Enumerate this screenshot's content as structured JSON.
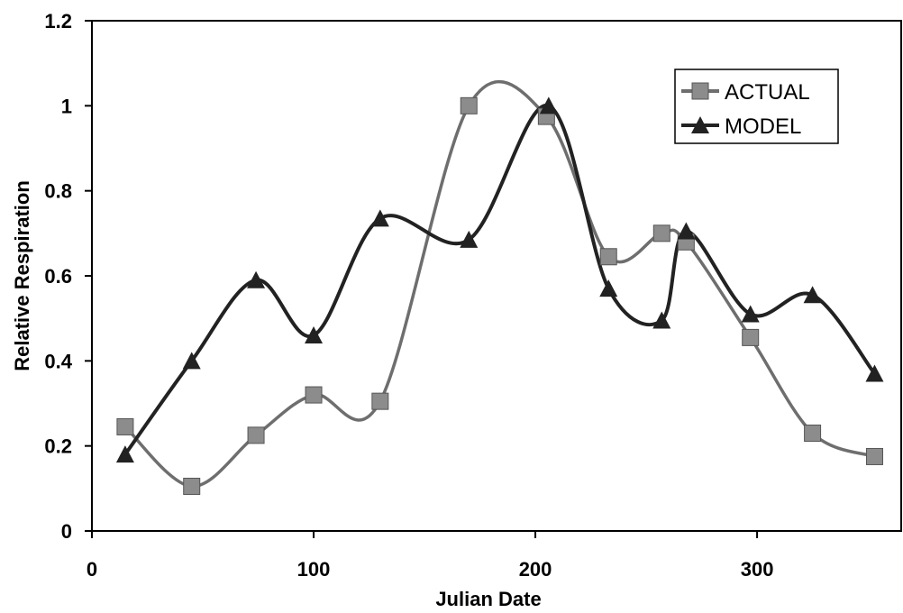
{
  "chart_data": {
    "type": "line",
    "xlabel": "Julian Date",
    "ylabel": "Relative Respiration",
    "xlim": [
      0,
      365
    ],
    "ylim": [
      0,
      1.2
    ],
    "xticks": [
      0,
      100,
      200,
      300
    ],
    "yticks": [
      0,
      0.2,
      0.4,
      0.6,
      0.8,
      1,
      1.2
    ],
    "xtick_labels": [
      "0",
      "100",
      "200",
      "300"
    ],
    "ytick_labels": [
      "0",
      "0.2",
      "0.4",
      "0.6",
      "0.8",
      "1",
      "1.2"
    ],
    "grid": false,
    "legend_position": "top-right",
    "series": [
      {
        "name": "ACTUAL",
        "marker": "square",
        "color": "#6e6e6e",
        "smooth": true,
        "x": [
          15,
          45,
          74,
          100,
          130,
          170,
          205,
          233,
          257,
          268,
          297,
          325,
          353
        ],
        "y": [
          0.245,
          0.105,
          0.225,
          0.32,
          0.305,
          1.0,
          0.975,
          0.645,
          0.7,
          0.68,
          0.455,
          0.23,
          0.175
        ]
      },
      {
        "name": "MODEL",
        "marker": "triangle",
        "color": "#222222",
        "smooth": true,
        "x": [
          15,
          45,
          74,
          100,
          130,
          170,
          206,
          233,
          257,
          268,
          297,
          325,
          353
        ],
        "y": [
          0.18,
          0.4,
          0.59,
          0.46,
          0.735,
          0.685,
          1.0,
          0.57,
          0.495,
          0.705,
          0.51,
          0.555,
          0.37
        ]
      }
    ]
  }
}
